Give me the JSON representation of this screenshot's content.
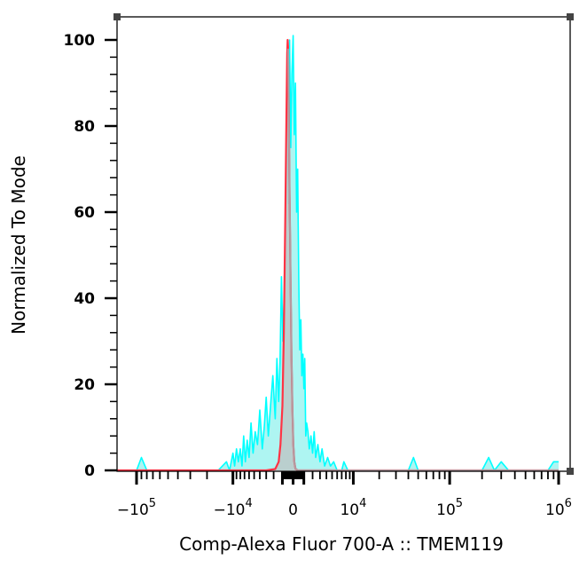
{
  "chart_data": {
    "type": "area",
    "xlabel": "Comp-Alexa Fluor 700-A :: TMEM119",
    "ylabel": "Normalized To Mode",
    "x_scale": "biexponential",
    "ylim": [
      0,
      100
    ],
    "y_ticks": [
      0,
      20,
      40,
      60,
      80,
      100
    ],
    "x_tick_labels": [
      {
        "base": "-10",
        "exp": "5",
        "value": -100000
      },
      {
        "base": "-10",
        "exp": "4",
        "value": -10000
      },
      {
        "base": "0",
        "exp": "",
        "value": 0
      },
      {
        "base": "10",
        "exp": "4",
        "value": 10000
      },
      {
        "base": "10",
        "exp": "5",
        "value": 100000
      },
      {
        "base": "10",
        "exp": "6",
        "value": 1000000
      }
    ],
    "series": [
      {
        "color": "#00ffff",
        "fill": "#aef5f2",
        "style": "filled",
        "points": [
          [
            -250000,
            0
          ],
          [
            -150000,
            0
          ],
          [
            -100000,
            0
          ],
          [
            -90000,
            3
          ],
          [
            -80000,
            0
          ],
          [
            -40000,
            0
          ],
          [
            -15000,
            0
          ],
          [
            -12000,
            2
          ],
          [
            -11000,
            0
          ],
          [
            -10000,
            4
          ],
          [
            -9500,
            1
          ],
          [
            -9000,
            5
          ],
          [
            -8500,
            2
          ],
          [
            -8000,
            5
          ],
          [
            -7600,
            1
          ],
          [
            -7200,
            8
          ],
          [
            -6800,
            2
          ],
          [
            -6400,
            7
          ],
          [
            -6000,
            3
          ],
          [
            -5600,
            11
          ],
          [
            -5200,
            4
          ],
          [
            -4800,
            9
          ],
          [
            -4400,
            6
          ],
          [
            -4000,
            14
          ],
          [
            -3600,
            5
          ],
          [
            -3300,
            10
          ],
          [
            -3000,
            17
          ],
          [
            -2700,
            8
          ],
          [
            -2400,
            15
          ],
          [
            -2100,
            22
          ],
          [
            -1800,
            12
          ],
          [
            -1600,
            26
          ],
          [
            -1400,
            16
          ],
          [
            -1250,
            25
          ],
          [
            -1100,
            45
          ],
          [
            -950,
            30
          ],
          [
            -800,
            42
          ],
          [
            -650,
            60
          ],
          [
            -500,
            90
          ],
          [
            -400,
            62
          ],
          [
            -300,
            100
          ],
          [
            -200,
            75
          ],
          [
            -100,
            92
          ],
          [
            0,
            101
          ],
          [
            100,
            78
          ],
          [
            200,
            90
          ],
          [
            300,
            60
          ],
          [
            400,
            70
          ],
          [
            500,
            45
          ],
          [
            600,
            28
          ],
          [
            700,
            35
          ],
          [
            800,
            22
          ],
          [
            900,
            27
          ],
          [
            1000,
            19
          ],
          [
            1100,
            26
          ],
          [
            1200,
            8
          ],
          [
            1300,
            11
          ],
          [
            1450,
            9
          ],
          [
            1600,
            5
          ],
          [
            1800,
            8
          ],
          [
            2000,
            4
          ],
          [
            2200,
            9
          ],
          [
            2400,
            3
          ],
          [
            2700,
            6
          ],
          [
            3000,
            2
          ],
          [
            3300,
            5
          ],
          [
            3700,
            1
          ],
          [
            4200,
            3
          ],
          [
            4700,
            1
          ],
          [
            5300,
            2
          ],
          [
            6000,
            0
          ],
          [
            7000,
            0
          ],
          [
            7500,
            2
          ],
          [
            8500,
            0
          ],
          [
            20000,
            0
          ],
          [
            40000,
            0
          ],
          [
            45000,
            3
          ],
          [
            50000,
            0
          ],
          [
            120000,
            0
          ],
          [
            200000,
            0
          ],
          [
            230000,
            3
          ],
          [
            260000,
            0
          ],
          [
            300000,
            2
          ],
          [
            350000,
            0
          ],
          [
            800000,
            0
          ],
          [
            900000,
            2
          ],
          [
            1000000,
            2
          ]
        ]
      },
      {
        "color": "#ff3344",
        "fill": "#bcc8c8",
        "style": "filled",
        "points": [
          [
            -300000,
            0
          ],
          [
            -3000,
            0
          ],
          [
            -1800,
            0.3
          ],
          [
            -1400,
            2
          ],
          [
            -1200,
            6
          ],
          [
            -1000,
            15
          ],
          [
            -850,
            32
          ],
          [
            -700,
            60
          ],
          [
            -600,
            82
          ],
          [
            -520,
            97
          ],
          [
            -480,
            100
          ],
          [
            -440,
            98
          ],
          [
            -380,
            85
          ],
          [
            -300,
            64
          ],
          [
            -220,
            44
          ],
          [
            -140,
            27
          ],
          [
            -60,
            14
          ],
          [
            20,
            6
          ],
          [
            100,
            2
          ],
          [
            200,
            0.4
          ],
          [
            400,
            0
          ],
          [
            1000000,
            0
          ]
        ]
      }
    ]
  }
}
